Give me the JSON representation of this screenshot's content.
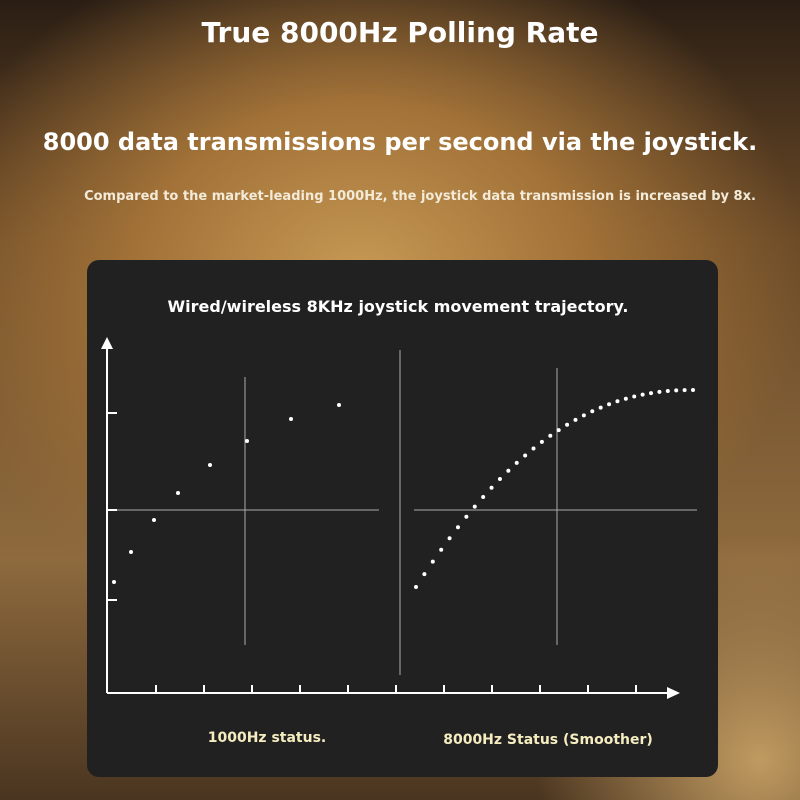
{
  "header": {
    "title": "True 8000Hz Polling Rate",
    "subtitle": "8000 data transmissions per second via the joystick.",
    "description": "Compared to the market-leading 1000Hz, the joystick data transmission is increased by 8x."
  },
  "panel": {
    "title": "Wired/wireless 8KHz joystick movement trajectory.",
    "left_caption": "1000Hz status.",
    "right_caption": "8000Hz Status (Smoother)"
  }
}
